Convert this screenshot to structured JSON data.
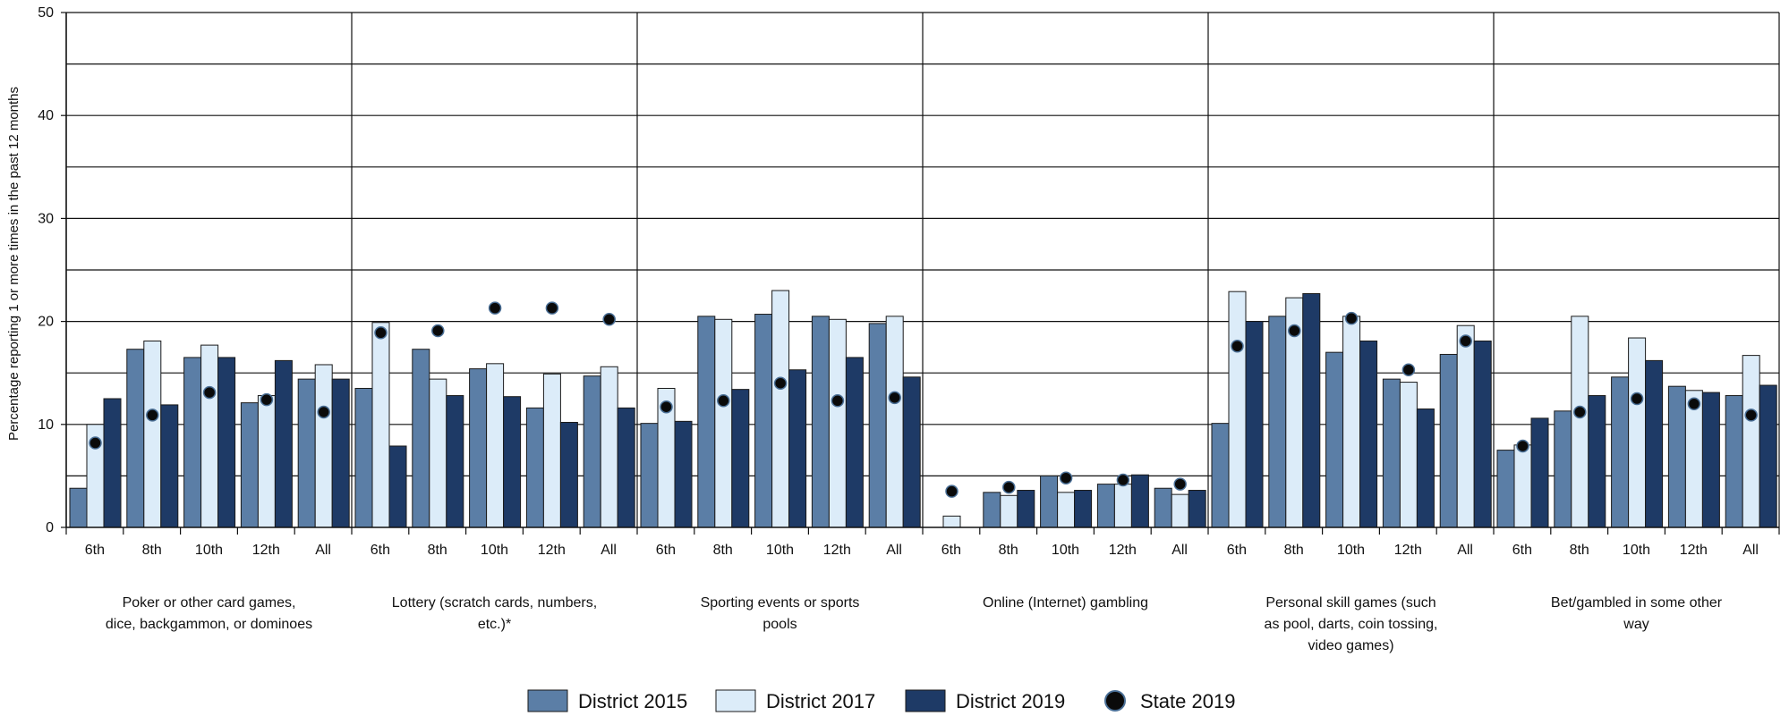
{
  "chart_data": {
    "type": "bar",
    "title": "",
    "ylabel": "Percentage reporting 1 or more times in the past 12 months",
    "ylim": [
      0,
      50
    ],
    "yticks": [
      0,
      10,
      20,
      30,
      40,
      50
    ],
    "grid": true,
    "legend_position": "bottom",
    "colors": {
      "District 2015": "#5b7ea6",
      "District 2017": "#dcecf9",
      "District 2019": "#1e3a66",
      "State 2019": "#0a0a0a"
    },
    "groups": [
      {
        "label": "Poker or other card games, dice, backgammon, or dominoes",
        "label_lines": [
          "Poker or other card games,",
          "dice, backgammon, or dominoes"
        ],
        "categories": [
          "6th",
          "8th",
          "10th",
          "12th",
          "All"
        ],
        "series": [
          {
            "name": "District 2015",
            "values": [
              3.8,
              17.3,
              16.5,
              12.1,
              14.4
            ]
          },
          {
            "name": "District 2017",
            "values": [
              10.0,
              18.1,
              17.7,
              12.8,
              15.8
            ]
          },
          {
            "name": "District 2019",
            "values": [
              12.5,
              11.9,
              16.5,
              16.2,
              14.4
            ]
          },
          {
            "name": "State 2019",
            "values": [
              8.2,
              10.9,
              13.1,
              12.4,
              11.2
            ]
          }
        ]
      },
      {
        "label": "Lottery (scratch cards, numbers, etc.)*",
        "label_lines": [
          "Lottery (scratch cards, numbers,",
          "etc.)*"
        ],
        "categories": [
          "6th",
          "8th",
          "10th",
          "12th",
          "All"
        ],
        "series": [
          {
            "name": "District 2015",
            "values": [
              13.5,
              17.3,
              15.4,
              11.6,
              14.7
            ]
          },
          {
            "name": "District 2017",
            "values": [
              19.9,
              14.4,
              15.9,
              14.9,
              15.6
            ]
          },
          {
            "name": "District 2019",
            "values": [
              7.9,
              12.8,
              12.7,
              10.2,
              11.6
            ]
          },
          {
            "name": "State 2019",
            "values": [
              18.9,
              19.1,
              21.3,
              21.3,
              20.2
            ]
          }
        ]
      },
      {
        "label": "Sporting events or sports pools",
        "label_lines": [
          "Sporting events or sports",
          "pools"
        ],
        "categories": [
          "6th",
          "8th",
          "10th",
          "12th",
          "All"
        ],
        "series": [
          {
            "name": "District 2015",
            "values": [
              10.1,
              20.5,
              20.7,
              20.5,
              19.8
            ]
          },
          {
            "name": "District 2017",
            "values": [
              13.5,
              20.2,
              23.0,
              20.2,
              20.5
            ]
          },
          {
            "name": "District 2019",
            "values": [
              10.3,
              13.4,
              15.3,
              16.5,
              14.6
            ]
          },
          {
            "name": "State 2019",
            "values": [
              11.7,
              12.3,
              14.0,
              12.3,
              12.6
            ]
          }
        ]
      },
      {
        "label": "Online (Internet) gambling",
        "label_lines": [
          "Online (Internet) gambling"
        ],
        "categories": [
          "6th",
          "8th",
          "10th",
          "12th",
          "All"
        ],
        "series": [
          {
            "name": "District 2015",
            "values": [
              0,
              3.4,
              5.0,
              4.2,
              3.8
            ]
          },
          {
            "name": "District 2017",
            "values": [
              1.1,
              3.1,
              3.4,
              4.2,
              3.2
            ]
          },
          {
            "name": "District 2019",
            "values": [
              0,
              3.6,
              3.6,
              5.1,
              3.6
            ]
          },
          {
            "name": "State 2019",
            "values": [
              3.5,
              3.9,
              4.8,
              4.6,
              4.2
            ]
          }
        ]
      },
      {
        "label": "Personal skill games (such as pool, darts, coin tossing, video games)",
        "label_lines": [
          "Personal skill games (such",
          "as pool, darts, coin tossing,",
          "video games)"
        ],
        "categories": [
          "6th",
          "8th",
          "10th",
          "12th",
          "All"
        ],
        "series": [
          {
            "name": "District 2015",
            "values": [
              10.1,
              20.5,
              17.0,
              14.4,
              16.8
            ]
          },
          {
            "name": "District 2017",
            "values": [
              22.9,
              22.3,
              20.5,
              14.1,
              19.6
            ]
          },
          {
            "name": "District 2019",
            "values": [
              20.0,
              22.7,
              18.1,
              11.5,
              18.1
            ]
          },
          {
            "name": "State 2019",
            "values": [
              17.6,
              19.1,
              20.3,
              15.3,
              18.1
            ]
          }
        ]
      },
      {
        "label": "Bet/gambled in some other way",
        "label_lines": [
          "Bet/gambled in some other",
          "way"
        ],
        "categories": [
          "6th",
          "8th",
          "10th",
          "12th",
          "All"
        ],
        "series": [
          {
            "name": "District 2015",
            "values": [
              7.5,
              11.3,
              14.6,
              13.7,
              12.8
            ]
          },
          {
            "name": "District 2017",
            "values": [
              8.0,
              20.5,
              18.4,
              13.3,
              16.7
            ]
          },
          {
            "name": "District 2019",
            "values": [
              10.6,
              12.8,
              16.2,
              13.1,
              13.8
            ]
          },
          {
            "name": "State 2019",
            "values": [
              7.9,
              11.2,
              12.5,
              12.0,
              10.9
            ]
          }
        ]
      }
    ],
    "legend": [
      {
        "name": "District 2015",
        "kind": "bar"
      },
      {
        "name": "District 2017",
        "kind": "bar"
      },
      {
        "name": "District 2019",
        "kind": "bar"
      },
      {
        "name": "State 2019",
        "kind": "dot"
      }
    ]
  }
}
